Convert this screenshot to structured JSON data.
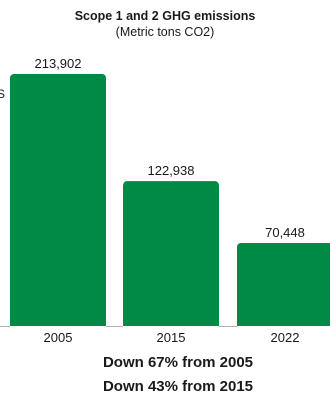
{
  "chart_data": {
    "type": "bar",
    "title": "Scope 1 and 2 GHG emissions",
    "subtitle": "(Metric tons CO2)",
    "categories": [
      "2005",
      "2015",
      "2022"
    ],
    "values": [
      213902,
      122938,
      70448
    ],
    "value_labels": [
      "213,902",
      "122,938",
      "70,448"
    ],
    "ylim": [
      0,
      213902
    ],
    "grid": false,
    "legend": "none",
    "bar_color": "#008a45"
  },
  "annotations": {
    "left_fragment": "S",
    "line1": "Down 67% from 2005",
    "line2": "Down 43% from 2015"
  }
}
